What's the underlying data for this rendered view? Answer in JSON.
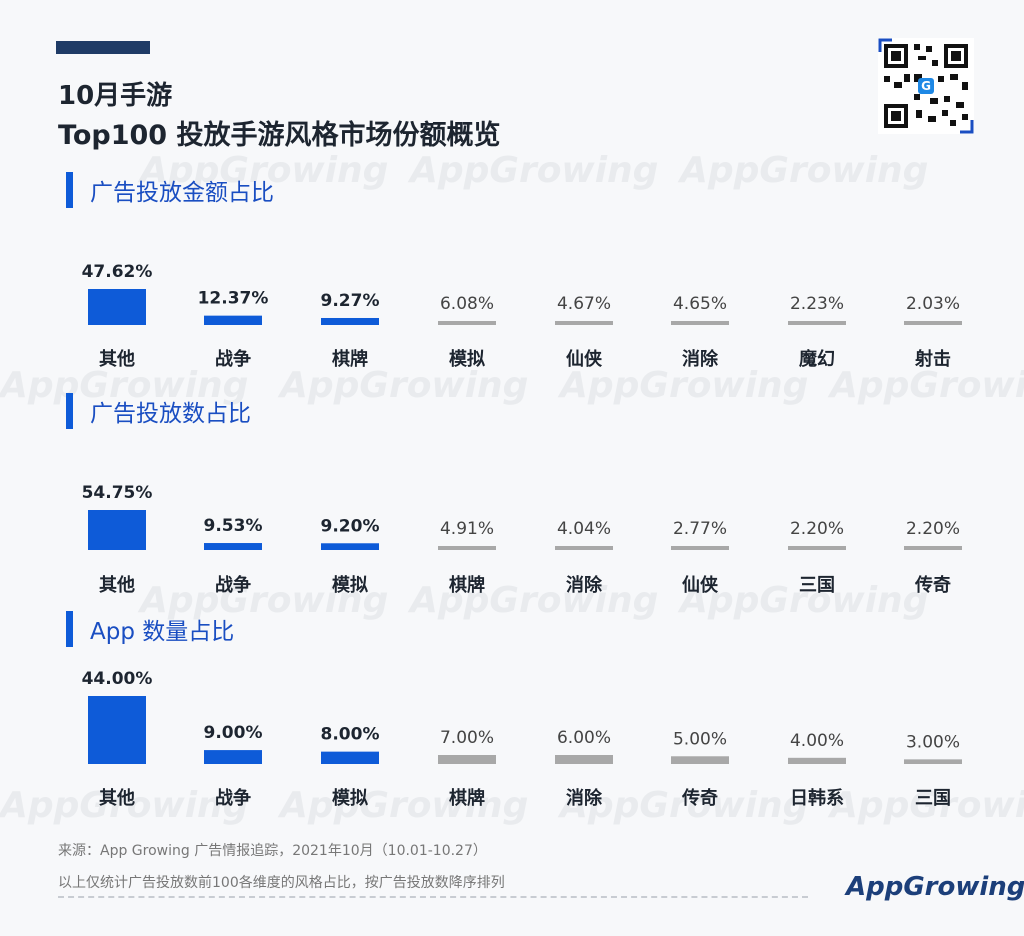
{
  "header": {
    "title_line1": "10月手游",
    "title_line2": "Top100 投放手游风格市场份额概览"
  },
  "logo": {
    "text": "AppGrowing"
  },
  "footer": {
    "source": "来源：App Growing 广告情报追踪，2021年10月（10.01-10.27）",
    "note": "以上仅统计广告投放数前100各维度的风格占比，按广告投放数降序排列"
  },
  "colors": {
    "highlight": "#0e5bd8",
    "other": "#a8a8a8",
    "title": "#1d2530"
  },
  "chart_data": [
    {
      "type": "bar",
      "title": "广告投放金额占比",
      "categories": [
        "其他",
        "战争",
        "棋牌",
        "模拟",
        "仙侠",
        "消除",
        "魔幻",
        "射击"
      ],
      "values": [
        47.62,
        12.37,
        9.27,
        6.08,
        4.67,
        4.65,
        2.23,
        2.03
      ],
      "value_labels": [
        "47.62%",
        "12.37%",
        "9.27%",
        "6.08%",
        "4.67%",
        "4.65%",
        "2.23%",
        "2.03%"
      ],
      "highlight_count": 3
    },
    {
      "type": "bar",
      "title": "广告投放数占比",
      "categories": [
        "其他",
        "战争",
        "模拟",
        "棋牌",
        "消除",
        "仙侠",
        "三国",
        "传奇"
      ],
      "values": [
        54.75,
        9.53,
        9.2,
        4.91,
        4.04,
        2.77,
        2.2,
        2.2
      ],
      "value_labels": [
        "54.75%",
        "9.53%",
        "9.20%",
        "4.91%",
        "4.04%",
        "2.77%",
        "2.20%",
        "2.20%"
      ],
      "highlight_count": 3
    },
    {
      "type": "bar",
      "title": "App 数量占比",
      "categories": [
        "其他",
        "战争",
        "模拟",
        "棋牌",
        "消除",
        "传奇",
        "日韩系",
        "三国"
      ],
      "values": [
        44.0,
        9.0,
        8.0,
        7.0,
        6.0,
        5.0,
        4.0,
        3.0
      ],
      "value_labels": [
        "44.00%",
        "9.00%",
        "8.00%",
        "7.00%",
        "6.00%",
        "5.00%",
        "4.00%",
        "3.00%"
      ],
      "highlight_count": 3
    }
  ]
}
